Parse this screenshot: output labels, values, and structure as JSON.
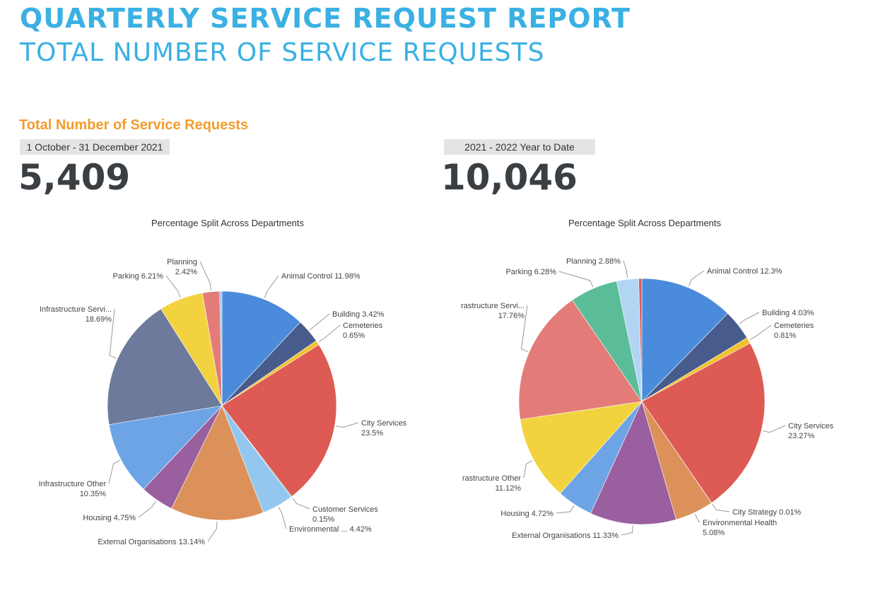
{
  "header": {
    "title": "QUARTERLY SERVICE REQUEST REPORT",
    "subtitle": "TOTAL NUMBER OF SERVICE REQUESTS"
  },
  "section_title": "Total Number of Service Requests",
  "left": {
    "period": "1 October - 31 December 2021",
    "total": "5,409"
  },
  "right": {
    "period": "2021 - 2022 Year to Date",
    "total": "10,046"
  },
  "chart_data": [
    {
      "type": "pie",
      "title": "Percentage Split Across Departments",
      "slices": [
        {
          "label": "Animal Control",
          "value_text": "11.98%",
          "value": 11.98,
          "color": "#4a8bdb"
        },
        {
          "label": "Building",
          "value_text": "3.42%",
          "value": 3.42,
          "color": "#475b8c"
        },
        {
          "label": "Cemeteries",
          "value_text": "0.65%",
          "value": 0.65,
          "color": "#f2c12e"
        },
        {
          "label": "City Services",
          "value_text": "23.5%",
          "value": 23.5,
          "color": "#dd5b54"
        },
        {
          "label": "Customer Services",
          "value_text": "0.15%",
          "value": 0.15,
          "color": "#58b58c"
        },
        {
          "label": "Environmental ...",
          "value_text": "4.42%",
          "value": 4.42,
          "color": "#93c7f0"
        },
        {
          "label": "External Organisations",
          "value_text": "13.14%",
          "value": 13.14,
          "color": "#dd915a"
        },
        {
          "label": "Housing",
          "value_text": "4.75%",
          "value": 4.75,
          "color": "#9a5f9e"
        },
        {
          "label": "Infrastructure Other",
          "value_text": "10.35%",
          "value": 10.35,
          "color": "#6ca4e6"
        },
        {
          "label": "Infrastructure Servi...",
          "value_text": "18.69%",
          "value": 18.69,
          "color": "#6d7a9c"
        },
        {
          "label": "Parking",
          "value_text": "6.21%",
          "value": 6.21,
          "color": "#f2d33f"
        },
        {
          "label": "Planning",
          "value_text": "2.42%",
          "value": 2.42,
          "color": "#e37c78"
        },
        {
          "label": "",
          "value_text": "",
          "value": 0.32,
          "color": "#9cc3ea"
        }
      ]
    },
    {
      "type": "pie",
      "title": "Percentage Split Across Departments",
      "slices": [
        {
          "label": "Animal Control",
          "value_text": "12.3%",
          "value": 12.3,
          "color": "#4a8bdb"
        },
        {
          "label": "Building",
          "value_text": "4.03%",
          "value": 4.03,
          "color": "#475b8c"
        },
        {
          "label": "Cemeteries",
          "value_text": "0.81%",
          "value": 0.81,
          "color": "#f2c12e"
        },
        {
          "label": "City Services",
          "value_text": "23.27%",
          "value": 23.27,
          "color": "#dd5b54"
        },
        {
          "label": "City Strategy",
          "value_text": "0.01%",
          "value": 0.01,
          "color": "#9cc3ea"
        },
        {
          "label": "Environmental Health",
          "value_text": "5.08%",
          "value": 5.08,
          "color": "#dd915a"
        },
        {
          "label": "External Organisations",
          "value_text": "11.33%",
          "value": 11.33,
          "color": "#9a5f9e"
        },
        {
          "label": "Housing",
          "value_text": "4.72%",
          "value": 4.72,
          "color": "#6ca4e6"
        },
        {
          "label": "rastructure Other",
          "value_text": "11.12%",
          "value": 11.12,
          "color": "#f2d33f"
        },
        {
          "label": "rastructure Servi...",
          "value_text": "17.76%",
          "value": 17.76,
          "color": "#e37c78"
        },
        {
          "label": "Parking",
          "value_text": "6.28%",
          "value": 6.28,
          "color": "#5bbd98"
        },
        {
          "label": "Planning",
          "value_text": "2.88%",
          "value": 2.88,
          "color": "#b2d5f4"
        },
        {
          "label": "",
          "value_text": "",
          "value": 0.41,
          "color": "#dd5b54"
        }
      ]
    }
  ]
}
